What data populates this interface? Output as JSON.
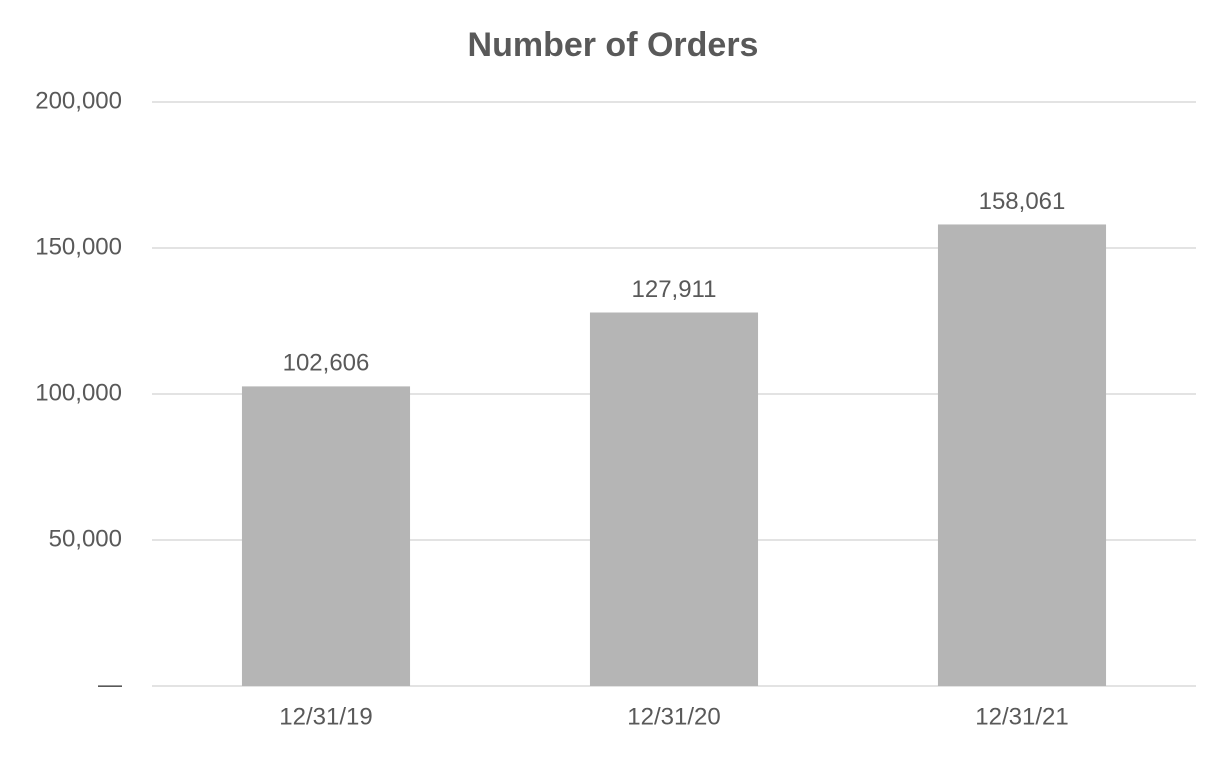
{
  "chart_data": {
    "type": "bar",
    "title": "Number of Orders",
    "categories": [
      "12/31/19",
      "12/31/20",
      "12/31/21"
    ],
    "values": [
      102606,
      127911,
      158061
    ],
    "value_labels": [
      "102,606",
      "127,911",
      "158,061"
    ],
    "color": "#b5b5b5",
    "ylim": [
      0,
      200000
    ],
    "yticks": [
      {
        "value": 0,
        "label": "—"
      },
      {
        "value": 50000,
        "label": "50,000"
      },
      {
        "value": 100000,
        "label": "100,000"
      },
      {
        "value": 150000,
        "label": "150,000"
      },
      {
        "value": 200000,
        "label": "200,000"
      }
    ],
    "grid": true
  }
}
